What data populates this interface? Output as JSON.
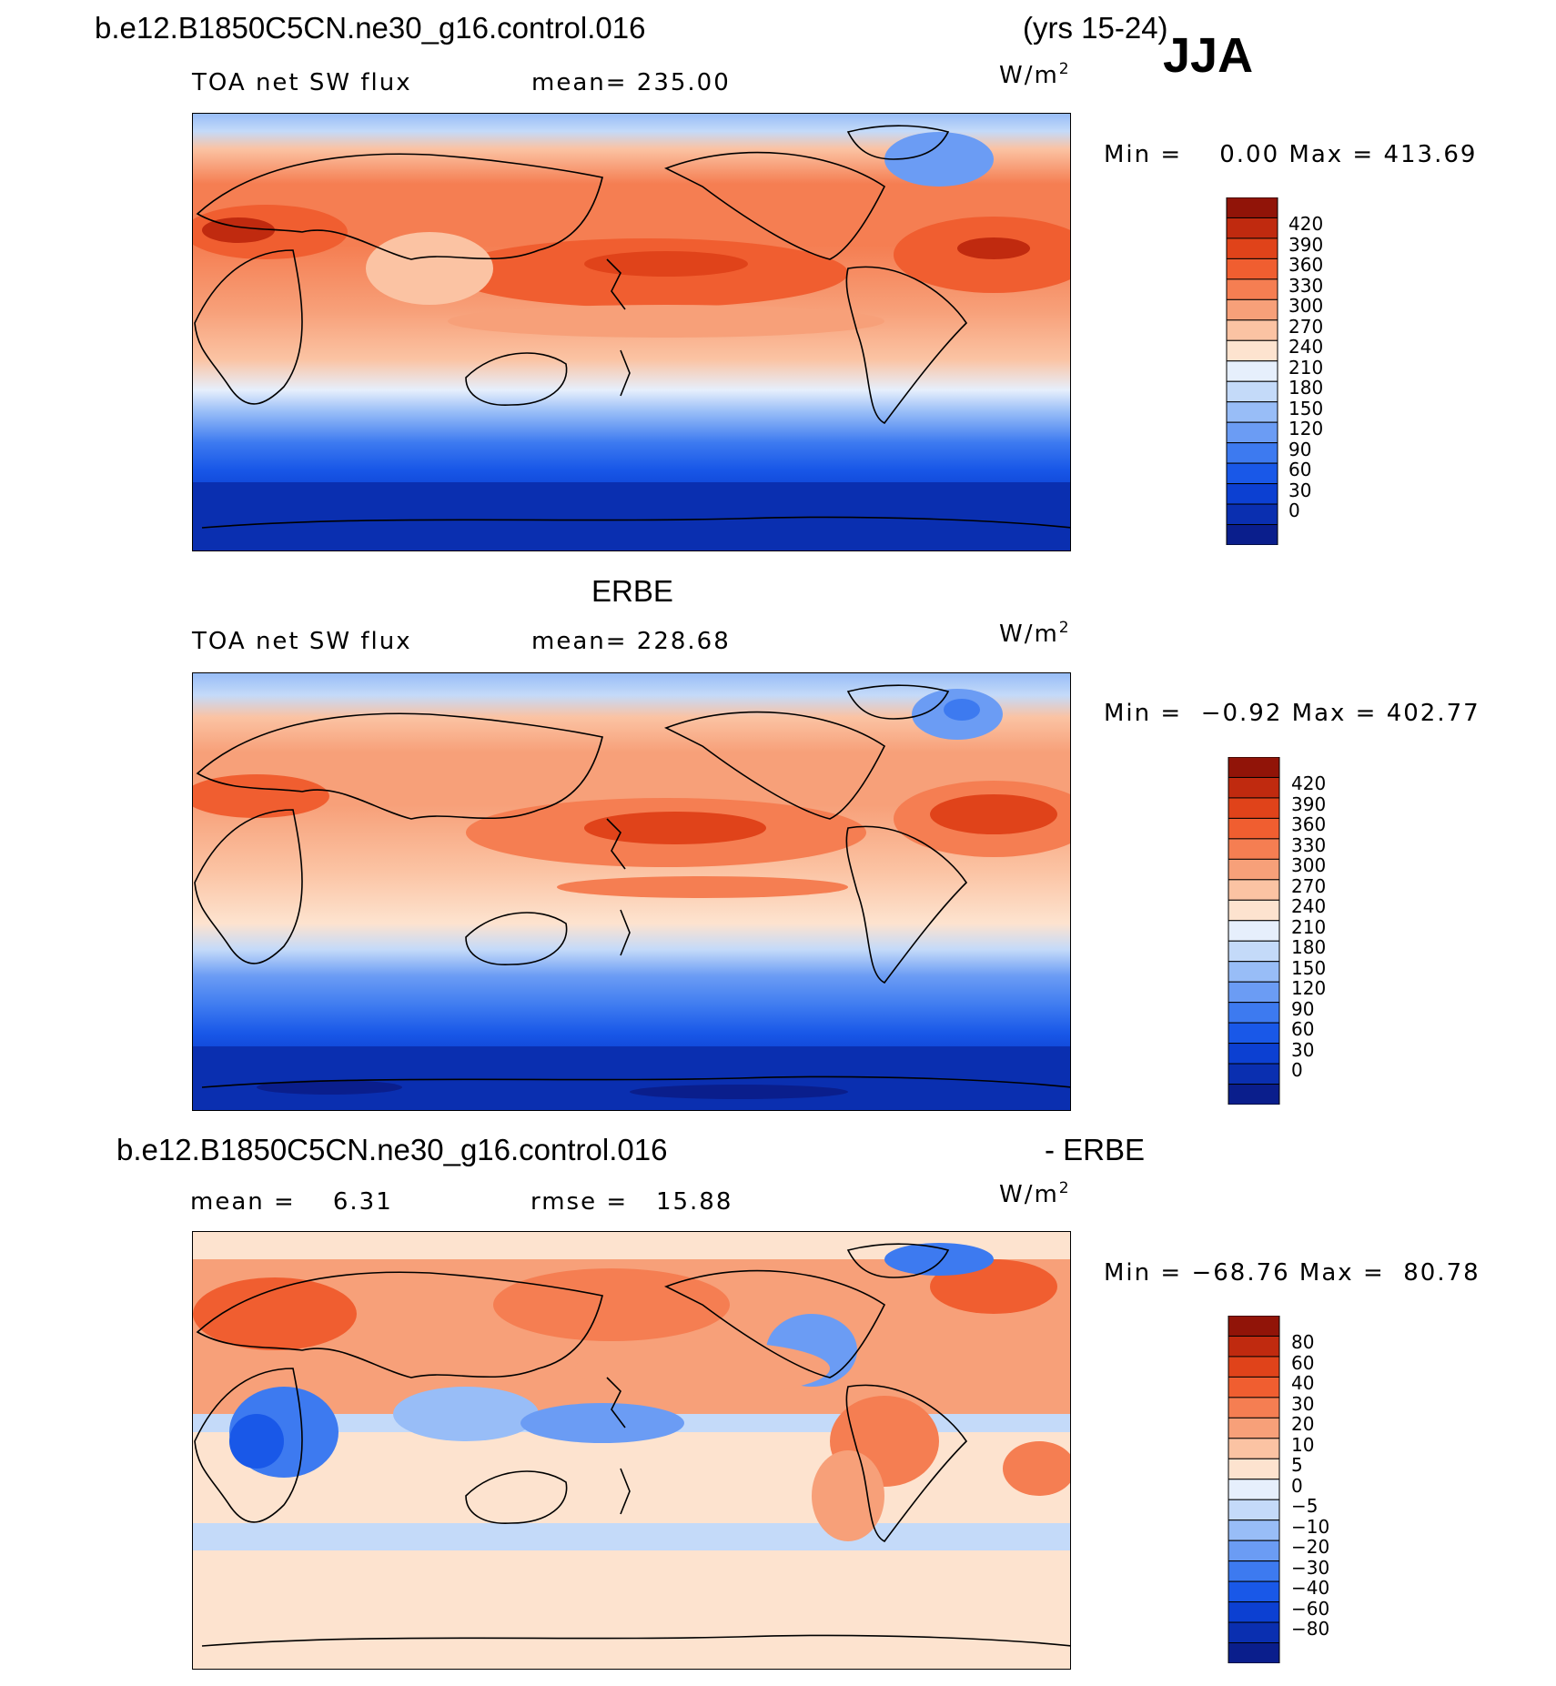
{
  "header": {
    "case_name": "b.e12.B1850C5CN.ne30_g16.control.016",
    "years": "(yrs 15-24)",
    "season": "JJA"
  },
  "panel1": {
    "variable": "TOA net SW flux",
    "mean_text": "mean= 235.00",
    "units_base": "W/m",
    "units_exp": "2",
    "minmax_text": "Min =    0.00 Max = 413.69",
    "colors": [
      "#0a1e8c",
      "#0a2fb0",
      "#0c40d2",
      "#1958e8",
      "#3d7af0",
      "#6b9cf4",
      "#98bdf7",
      "#c4daf9",
      "#e6effc",
      "#fde3cf",
      "#fbc3a3",
      "#f7a079",
      "#f57e52",
      "#f05e30",
      "#e0431a",
      "#c02a0f",
      "#911408"
    ],
    "labels": [
      "420",
      "390",
      "360",
      "330",
      "300",
      "270",
      "240",
      "210",
      "180",
      "150",
      "120",
      "90",
      "60",
      "30",
      "0"
    ]
  },
  "panel2": {
    "source": "ERBE",
    "variable": "TOA net SW flux",
    "mean_text": "mean= 228.68",
    "units_base": "W/m",
    "units_exp": "2",
    "minmax_text": "Min =  −0.92 Max = 402.77",
    "colors": [
      "#0a1e8c",
      "#0a2fb0",
      "#0c40d2",
      "#1958e8",
      "#3d7af0",
      "#6b9cf4",
      "#98bdf7",
      "#c4daf9",
      "#e6effc",
      "#fde3cf",
      "#fbc3a3",
      "#f7a079",
      "#f57e52",
      "#f05e30",
      "#e0431a",
      "#c02a0f",
      "#911408"
    ],
    "labels": [
      "420",
      "390",
      "360",
      "330",
      "300",
      "270",
      "240",
      "210",
      "180",
      "150",
      "120",
      "90",
      "60",
      "30",
      "0"
    ]
  },
  "panel3": {
    "title_left": "b.e12.B1850C5CN.ne30_g16.control.016",
    "title_right": "- ERBE",
    "mean_text": "mean =    6.31",
    "rmse_text": "rmse =   15.88",
    "units_base": "W/m",
    "units_exp": "2",
    "minmax_text": "Min = −68.76 Max =  80.78",
    "colors": [
      "#0a1e8c",
      "#0a2fb0",
      "#0c40d2",
      "#1958e8",
      "#3d7af0",
      "#6b9cf4",
      "#98bdf7",
      "#c4daf9",
      "#e6effc",
      "#fde3cf",
      "#fbc3a3",
      "#f7a079",
      "#f57e52",
      "#f05e30",
      "#e0431a",
      "#c02a0f",
      "#911408"
    ],
    "labels": [
      "80",
      "60",
      "40",
      "30",
      "20",
      "10",
      "5",
      "0",
      "−5",
      "−10",
      "−20",
      "−30",
      "−40",
      "−60",
      "−80"
    ]
  }
}
